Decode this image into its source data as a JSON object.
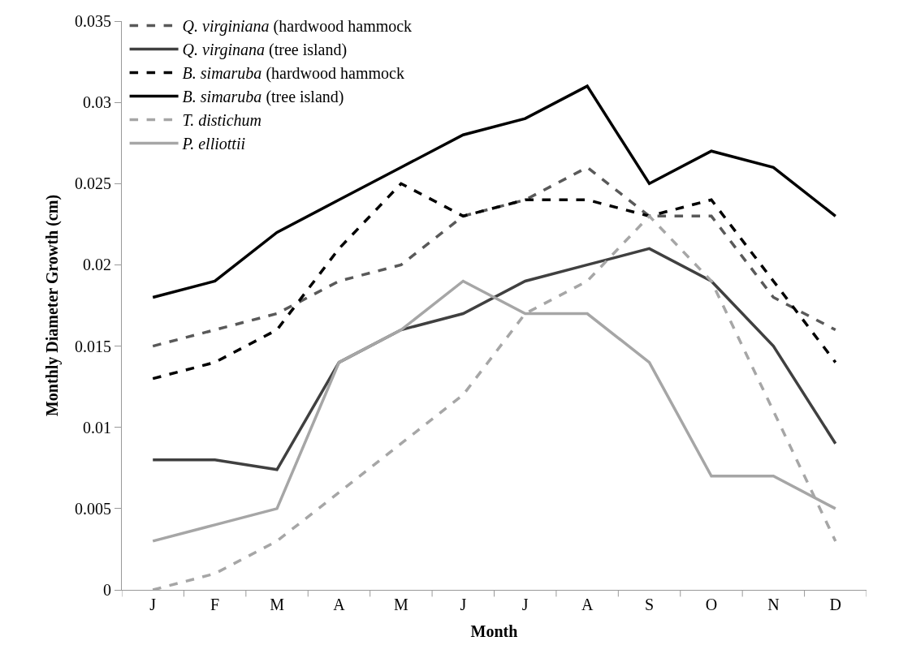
{
  "chart_data": {
    "type": "line",
    "xlabel": "Month",
    "ylabel": "Monthly Diameter Growth (cm)",
    "categories": [
      "J",
      "F",
      "M",
      "A",
      "M",
      "J",
      "J",
      "A",
      "S",
      "O",
      "N",
      "D"
    ],
    "series": [
      {
        "name": "Q. virginiana (hardwood hammock",
        "color": "#595959",
        "line_style": "dashed",
        "values": [
          0.015,
          0.016,
          0.017,
          0.019,
          0.02,
          0.023,
          0.024,
          0.026,
          0.023,
          0.023,
          0.018,
          0.016
        ]
      },
      {
        "name": "Q. virginana (tree island)",
        "color": "#404040",
        "line_style": "solid",
        "values": [
          0.008,
          0.008,
          0.0074,
          0.014,
          0.016,
          0.017,
          0.019,
          0.02,
          0.021,
          0.019,
          0.015,
          0.009
        ]
      },
      {
        "name": "B. simaruba (hardwood hammock",
        "color": "#000000",
        "line_style": "dashed",
        "values": [
          0.013,
          0.014,
          0.016,
          0.021,
          0.025,
          0.023,
          0.024,
          0.024,
          0.023,
          0.024,
          0.019,
          0.014
        ]
      },
      {
        "name": "B. simaruba (tree island)",
        "color": "#000000",
        "line_style": "solid",
        "values": [
          0.018,
          0.019,
          0.022,
          0.024,
          0.026,
          0.028,
          0.029,
          0.031,
          0.025,
          0.027,
          0.026,
          0.023
        ]
      },
      {
        "name": "T. distichum",
        "color": "#a6a6a6",
        "line_style": "dashed",
        "values": [
          0,
          0.001,
          0.003,
          0.006,
          0.009,
          0.012,
          0.017,
          0.019,
          0.023,
          0.019,
          0.011,
          0.003
        ]
      },
      {
        "name": "P. elliottii",
        "color": "#a6a6a6",
        "line_style": "solid",
        "values": [
          0.003,
          0.004,
          0.005,
          0.014,
          0.016,
          0.019,
          0.017,
          0.017,
          0.014,
          0.007,
          0.007,
          0.005
        ]
      }
    ],
    "ylim": [
      0,
      0.035
    ],
    "yticks": [
      0,
      0.005,
      0.01,
      0.015,
      0.02,
      0.025,
      0.03,
      0.035
    ],
    "legend": "top left",
    "marker": "none"
  }
}
